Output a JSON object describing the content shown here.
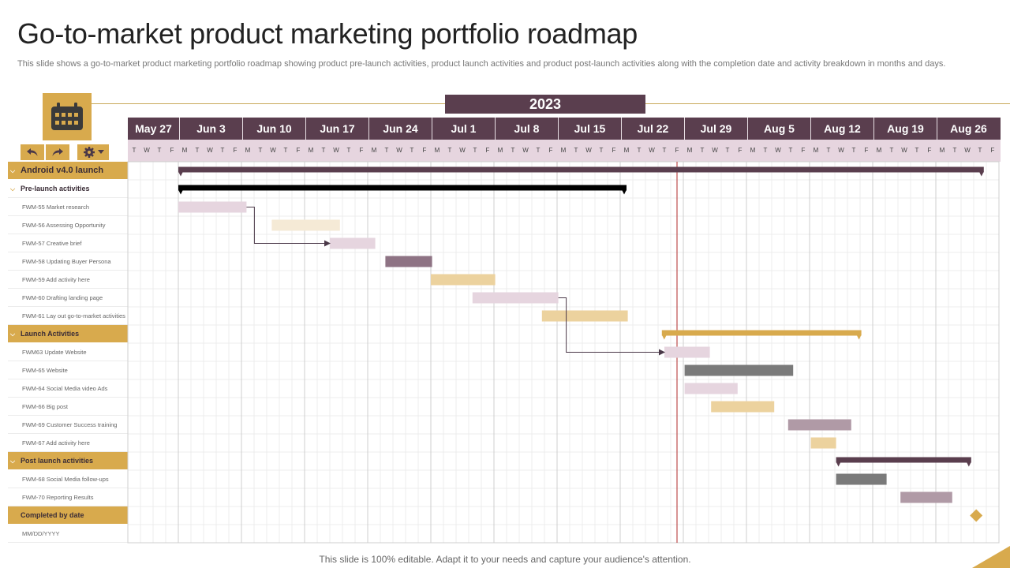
{
  "title": "Go-to-market product marketing portfolio roadmap",
  "subtitle": "This slide shows a go-to-market product marketing portfolio roadmap showing product pre-launch activities, product launch activities and product post-launch activities along with the completion date and activity breakdown in months and days.",
  "footer": "This slide is 100% editable. Adapt it to your needs and capture your audience's attention.",
  "colors": {
    "accent": "#d8aa4d",
    "header": "#5a3e4e",
    "pink": "#e6d5df",
    "today_line": "#b02a2a"
  },
  "toolbar": {
    "undo_icon": "undo-icon",
    "redo_icon": "redo-icon",
    "settings_icon": "gear-icon",
    "calendar_icon": "calendar-icon"
  },
  "chart_data": {
    "type": "gantt",
    "year": "2023",
    "weeks": [
      "May 27",
      "Jun 3",
      "Jun 10",
      "Jun 17",
      "Jun 24",
      "Jul 1",
      "Jul 8",
      "Jul 15",
      "Jul 22",
      "Jul 29",
      "Aug 5",
      "Aug 12",
      "Aug 19",
      "Aug 26"
    ],
    "day_letters": [
      "T",
      "W",
      "T",
      "F",
      "M",
      "T",
      "W",
      "T",
      "F",
      "M",
      "T",
      "W",
      "T",
      "F",
      "M",
      "T",
      "W",
      "T",
      "F",
      "M",
      "T",
      "W",
      "T",
      "F",
      "M",
      "T",
      "W",
      "T",
      "F",
      "M",
      "T",
      "W",
      "T",
      "F",
      "M",
      "T",
      "W",
      "T",
      "F",
      "M",
      "T",
      "W",
      "T",
      "F",
      "M",
      "T",
      "W",
      "T",
      "F",
      "M",
      "T",
      "W",
      "T",
      "F",
      "M",
      "T",
      "W",
      "T",
      "F",
      "M",
      "T",
      "W",
      "T",
      "F",
      "M",
      "T",
      "W",
      "T",
      "F"
    ],
    "today_day": 43,
    "tasks": [
      {
        "label": "Android v4.0 launch",
        "kind": "header-big",
        "bar": {
          "start": 4,
          "end": 67.8,
          "style": "summary",
          "color": "#5a3e4e"
        }
      },
      {
        "label": "Pre-launch activities",
        "kind": "sub",
        "bar": {
          "start": 4,
          "end": 39.5,
          "style": "summary",
          "color": "#000000"
        }
      },
      {
        "label": "FWM-55 Market research",
        "kind": "task",
        "bar": {
          "start": 4,
          "end": 9.4,
          "style": "bar",
          "color": "#e6d5df"
        }
      },
      {
        "label": "FWM-56 Assessing Opportunity",
        "kind": "task",
        "bar": {
          "start": 11.4,
          "end": 16.8,
          "style": "bar",
          "color": "#f5ead6"
        }
      },
      {
        "label": "FWM-57 Creative brief",
        "kind": "task",
        "bar": {
          "start": 16,
          "end": 19.6,
          "style": "bar",
          "color": "#e6d5df"
        }
      },
      {
        "label": "FWM-58 Updating Buyer Persona",
        "kind": "task",
        "bar": {
          "start": 20.4,
          "end": 24.1,
          "style": "bar",
          "color": "#8e7384"
        }
      },
      {
        "label": "FWM-59 Add activity here",
        "kind": "task",
        "bar": {
          "start": 24,
          "end": 29.1,
          "style": "bar",
          "color": "#ecd29e"
        }
      },
      {
        "label": "FWM-60 Drafting landing page",
        "kind": "task",
        "bar": {
          "start": 27.3,
          "end": 34.1,
          "style": "bar",
          "color": "#e6d5df"
        }
      },
      {
        "label": "FWM-61 Lay out go-to-market activities",
        "kind": "task",
        "bar": {
          "start": 32.8,
          "end": 39.6,
          "style": "bar",
          "color": "#ecd29e"
        }
      },
      {
        "label": "Launch Activities",
        "kind": "header",
        "bar": {
          "start": 42.3,
          "end": 58.1,
          "style": "summary",
          "color": "#d8aa4d"
        }
      },
      {
        "label": "FWM63 Update Website",
        "kind": "task",
        "bar": {
          "start": 42.5,
          "end": 46.1,
          "style": "bar",
          "color": "#e6d5df"
        }
      },
      {
        "label": "FWM-65 Website",
        "kind": "task",
        "bar": {
          "start": 44.1,
          "end": 52.7,
          "style": "bar",
          "color": "#7a7a7a"
        }
      },
      {
        "label": "FWM-64 Social Media video Ads",
        "kind": "task",
        "bar": {
          "start": 44.1,
          "end": 48.3,
          "style": "bar",
          "color": "#e6d5df"
        }
      },
      {
        "label": "FWM-66 Big post",
        "kind": "task",
        "bar": {
          "start": 46.2,
          "end": 51.2,
          "style": "bar",
          "color": "#ecd29e"
        }
      },
      {
        "label": "FWM-69 Customer Success training",
        "kind": "task",
        "bar": {
          "start": 52.3,
          "end": 57.3,
          "style": "bar",
          "color": "#b09aa6"
        }
      },
      {
        "label": "FWM-67 Add activity here",
        "kind": "task",
        "bar": {
          "start": 54.1,
          "end": 56.1,
          "style": "bar",
          "color": "#ecd29e"
        }
      },
      {
        "label": "Post launch activities",
        "kind": "header",
        "bar": {
          "start": 56.1,
          "end": 66.8,
          "style": "summary",
          "color": "#5a3e4e"
        }
      },
      {
        "label": "FWM-68 Social Media follow-ups",
        "kind": "task",
        "bar": {
          "start": 56.1,
          "end": 60.1,
          "style": "bar",
          "color": "#7a7a7a"
        }
      },
      {
        "label": "FWM-70 Reporting Results",
        "kind": "task",
        "bar": {
          "start": 61.2,
          "end": 65.3,
          "style": "bar",
          "color": "#b09aa6"
        }
      },
      {
        "label": "Completed by date",
        "kind": "header",
        "bar": {
          "start": 67.2,
          "end": 67.2,
          "style": "milestone",
          "color": "#d8aa4d"
        }
      },
      {
        "label": "MM/DD/YYYY",
        "kind": "task",
        "bar": null
      }
    ],
    "dependencies": [
      {
        "from_task": 2,
        "to_task": 4
      },
      {
        "from_task": 7,
        "to_task": 10
      }
    ]
  }
}
